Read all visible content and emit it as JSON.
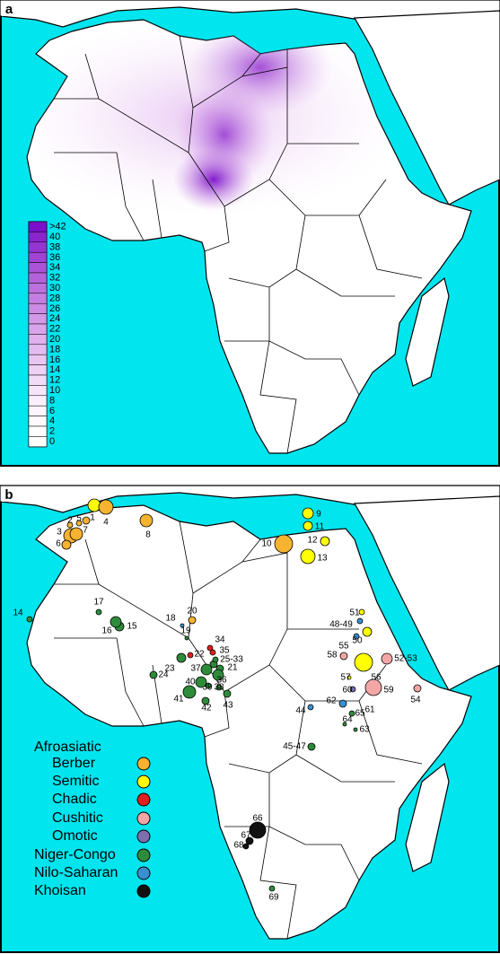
{
  "panel_a": {
    "label": "a",
    "scale": {
      "labels": [
        ">42",
        "40",
        "38",
        "36",
        "34",
        "32",
        "30",
        "28",
        "26",
        "24",
        "22",
        "20",
        "18",
        "16",
        "14",
        "12",
        "10",
        "8",
        "6",
        "4",
        "2",
        "0"
      ],
      "colors": [
        "#7b10c8",
        "#8a25cc",
        "#9535cf",
        "#a044d3",
        "#ab53d6",
        "#b462da",
        "#bd70dd",
        "#c57ee1",
        "#cc8be4",
        "#d398e7",
        "#d9a4ea",
        "#dfb0ed",
        "#e4bbf0",
        "#e9c6f2",
        "#eed1f5",
        "#f2dbf7",
        "#f6e5f9",
        "#f9eefb",
        "#fcf5fd",
        "#fefafe",
        "#ffffff",
        "#ffffff"
      ]
    }
  },
  "panel_b": {
    "label": "b",
    "legend": {
      "title": "Afroasiatic",
      "groups": [
        {
          "name": "Berber",
          "color": "#f5b330"
        },
        {
          "name": "Semitic",
          "color": "#ffff00"
        },
        {
          "name": "Chadic",
          "color": "#e02020"
        },
        {
          "name": "Cushitic",
          "color": "#f4a6a6"
        },
        {
          "name": "Omotic",
          "color": "#7b6fb0"
        },
        {
          "name": "Niger-Congo",
          "color": "#2e8b3a"
        },
        {
          "name": "Nilo-Saharan",
          "color": "#3a8fd0"
        },
        {
          "name": "Khoisan",
          "color": "#111111"
        }
      ]
    },
    "sites": [
      {
        "label": "1",
        "group": 0
      },
      {
        "label": "2",
        "group": 0
      },
      {
        "label": "3",
        "group": 0
      },
      {
        "label": "4",
        "group": 0
      },
      {
        "label": "5",
        "group": 0
      },
      {
        "label": "6",
        "group": 0
      },
      {
        "label": "7",
        "group": 0
      },
      {
        "label": "8",
        "group": 0
      },
      {
        "label": "9",
        "group": 1
      },
      {
        "label": "10",
        "group": 0
      },
      {
        "label": "11",
        "group": 1
      },
      {
        "label": "12",
        "group": 1
      },
      {
        "label": "13",
        "group": 1
      },
      {
        "label": "14",
        "group": 5
      },
      {
        "label": "15",
        "group": 5
      },
      {
        "label": "16",
        "group": 5
      },
      {
        "label": "17",
        "group": 5
      },
      {
        "label": "18",
        "group": 6
      },
      {
        "label": "19",
        "group": 5
      },
      {
        "label": "20",
        "group": 0
      },
      {
        "label": "21",
        "group": 5
      },
      {
        "label": "22",
        "group": 2
      },
      {
        "label": "23",
        "group": 5
      },
      {
        "label": "24",
        "group": 5
      },
      {
        "label": "25-33",
        "group": 5
      },
      {
        "label": "34",
        "group": 2
      },
      {
        "label": "35",
        "group": 2
      },
      {
        "label": "36",
        "group": 5
      },
      {
        "label": "37",
        "group": 5
      },
      {
        "label": "38",
        "group": 5
      },
      {
        "label": "39",
        "group": 5
      },
      {
        "label": "40",
        "group": 5
      },
      {
        "label": "41",
        "group": 5
      },
      {
        "label": "42",
        "group": 5
      },
      {
        "label": "43",
        "group": 5
      },
      {
        "label": "44",
        "group": 6
      },
      {
        "label": "45-47",
        "group": 5
      },
      {
        "label": "48-49",
        "group": 6
      },
      {
        "label": "50",
        "group": 6
      },
      {
        "label": "51",
        "group": 1
      },
      {
        "label": "52-53",
        "group": 3
      },
      {
        "label": "54",
        "group": 3
      },
      {
        "label": "55",
        "group": 1
      },
      {
        "label": "56",
        "group": 1
      },
      {
        "label": "57",
        "group": 1
      },
      {
        "label": "58",
        "group": 3
      },
      {
        "label": "59",
        "group": 3
      },
      {
        "label": "60",
        "group": 4
      },
      {
        "label": "61",
        "group": 5
      },
      {
        "label": "62",
        "group": 6
      },
      {
        "label": "63",
        "group": 5
      },
      {
        "label": "64",
        "group": 5
      },
      {
        "label": "65",
        "group": 5
      },
      {
        "label": "66",
        "group": 7
      },
      {
        "label": "67",
        "group": 7
      },
      {
        "label": "68",
        "group": 7
      },
      {
        "label": "69",
        "group": 5
      }
    ]
  }
}
